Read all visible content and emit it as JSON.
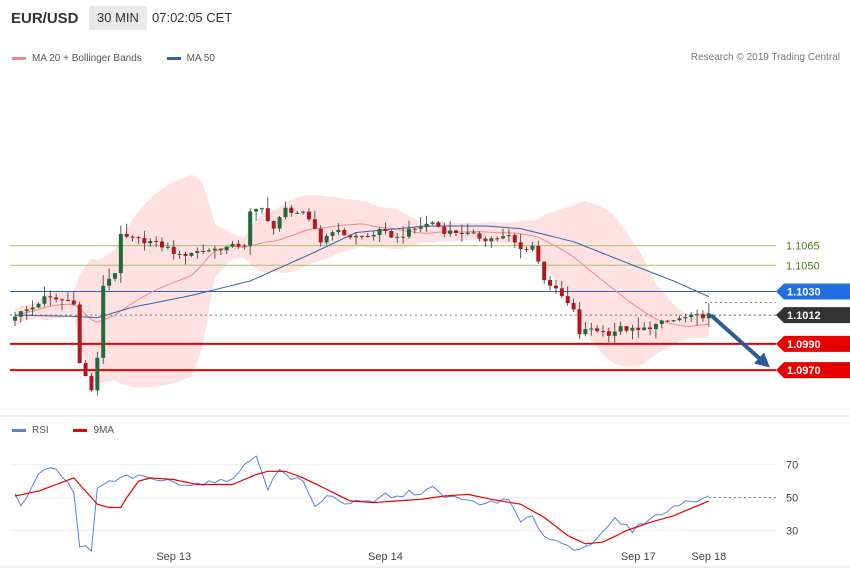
{
  "header": {
    "pair": "EUR/USD",
    "timeframe": "30 MIN",
    "time": "07:02:05 CET"
  },
  "legend": {
    "ma20_bb": "MA 20 + Bollinger Bands",
    "ma50": "MA 50",
    "rsi": "RSI",
    "ma9": "9MA"
  },
  "credit": "Research © 2019 Trading Central",
  "colors": {
    "up": "#1f6b3c",
    "down": "#b0171f",
    "band": "#ffe1e1",
    "ma20": "#f08a8a",
    "ma50": "#2e64a8",
    "resistance": "#2a62c9",
    "support": "#e60000",
    "target_green": "#9ec56a",
    "last_price": "#333333",
    "arrow": "#2d5c95",
    "rsi_line": "#5b82d6",
    "ma9_line": "#e60000"
  },
  "chart_data": [
    {
      "type": "candlestick",
      "ylim": [
        1.0938,
        1.118
      ],
      "levels": [
        {
          "label": "1.1065",
          "value": 1.1065,
          "kind": "target"
        },
        {
          "label": "1.1050",
          "value": 1.105,
          "kind": "target"
        },
        {
          "label": "1.1030",
          "value": 1.103,
          "kind": "resistance"
        },
        {
          "label": "1.1012",
          "value": 1.1012,
          "kind": "last"
        },
        {
          "label": "1.0990",
          "value": 1.099,
          "kind": "support"
        },
        {
          "label": "1.0970",
          "value": 1.097,
          "kind": "support"
        }
      ],
      "x_ticks": [
        {
          "label": "Sep 13",
          "index": 27
        },
        {
          "label": "Sep 14",
          "index": 63
        },
        {
          "label": "Sep 17",
          "index": 106
        },
        {
          "label": "Sep 18",
          "index": 118
        }
      ],
      "anchors": [
        [
          0,
          1.1012
        ],
        [
          3,
          1.1018
        ],
        [
          5,
          1.1025
        ],
        [
          9,
          1.1023
        ],
        [
          10,
          1.1022
        ],
        [
          11,
          1.0975
        ],
        [
          13,
          1.0955
        ],
        [
          14,
          1.0978
        ],
        [
          15,
          1.1035
        ],
        [
          17,
          1.1045
        ],
        [
          18,
          1.1072
        ],
        [
          20,
          1.107
        ],
        [
          23,
          1.1068
        ],
        [
          26,
          1.1063
        ],
        [
          28,
          1.1057
        ],
        [
          30,
          1.106
        ],
        [
          35,
          1.1063
        ],
        [
          39,
          1.1066
        ],
        [
          40,
          1.109
        ],
        [
          42,
          1.1093
        ],
        [
          44,
          1.1078
        ],
        [
          46,
          1.1093
        ],
        [
          49,
          1.1089
        ],
        [
          51,
          1.1078
        ],
        [
          52,
          1.1068
        ],
        [
          54,
          1.1077
        ],
        [
          57,
          1.1072
        ],
        [
          60,
          1.1072
        ],
        [
          62,
          1.1076
        ],
        [
          65,
          1.1071
        ],
        [
          67,
          1.1076
        ],
        [
          71,
          1.1083
        ],
        [
          73,
          1.1076
        ],
        [
          76,
          1.1075
        ],
        [
          80,
          1.107
        ],
        [
          84,
          1.1072
        ],
        [
          86,
          1.1062
        ],
        [
          88,
          1.1065
        ],
        [
          90,
          1.104
        ],
        [
          93,
          1.1026
        ],
        [
          95,
          1.1015
        ],
        [
          96,
          1.0998
        ],
        [
          98,
          1.1002
        ],
        [
          101,
          1.0998
        ],
        [
          103,
          1.1002
        ],
        [
          106,
          1.1
        ],
        [
          110,
          1.1006
        ],
        [
          114,
          1.101
        ],
        [
          118,
          1.1012
        ]
      ],
      "ma50_anchors": [
        [
          0,
          1.1012
        ],
        [
          10,
          1.1011
        ],
        [
          14,
          1.101
        ],
        [
          20,
          1.1018
        ],
        [
          30,
          1.1027
        ],
        [
          40,
          1.1038
        ],
        [
          50,
          1.1058
        ],
        [
          58,
          1.1075
        ],
        [
          70,
          1.108
        ],
        [
          80,
          1.108
        ],
        [
          86,
          1.1078
        ],
        [
          95,
          1.1068
        ],
        [
          104,
          1.1052
        ],
        [
          112,
          1.1038
        ],
        [
          118,
          1.1026
        ]
      ]
    },
    {
      "type": "line",
      "ylim": [
        17,
        85
      ],
      "y_ticks": [
        70,
        50,
        30
      ],
      "series": [
        {
          "name": "RSI",
          "anchors": [
            [
              0,
              53
            ],
            [
              1,
              44
            ],
            [
              3,
              58
            ],
            [
              5,
              68
            ],
            [
              7,
              67
            ],
            [
              9,
              58
            ],
            [
              10,
              52
            ],
            [
              11,
              20
            ],
            [
              12,
              20
            ],
            [
              13,
              18
            ],
            [
              14,
              55
            ],
            [
              15,
              58
            ],
            [
              17,
              60
            ],
            [
              19,
              63
            ],
            [
              22,
              62
            ],
            [
              26,
              60
            ],
            [
              30,
              58
            ],
            [
              36,
              60
            ],
            [
              40,
              72
            ],
            [
              41,
              76
            ],
            [
              43,
              56
            ],
            [
              45,
              67
            ],
            [
              47,
              62
            ],
            [
              49,
              60
            ],
            [
              51,
              44
            ],
            [
              53,
              52
            ],
            [
              56,
              47
            ],
            [
              58,
              47
            ],
            [
              61,
              47
            ],
            [
              63,
              52
            ],
            [
              65,
              50
            ],
            [
              67,
              53
            ],
            [
              69,
              53
            ],
            [
              71,
              56
            ],
            [
              73,
              50
            ],
            [
              76,
              50
            ],
            [
              79,
              45
            ],
            [
              81,
              48
            ],
            [
              84,
              48
            ],
            [
              86,
              35
            ],
            [
              88,
              38
            ],
            [
              90,
              27
            ],
            [
              92,
              24
            ],
            [
              95,
              19
            ],
            [
              97,
              21
            ],
            [
              99,
              24
            ],
            [
              102,
              37
            ],
            [
              105,
              30
            ],
            [
              108,
              38
            ],
            [
              110,
              40
            ],
            [
              112,
              44
            ],
            [
              114,
              48
            ],
            [
              116,
              49
            ],
            [
              118,
              50
            ]
          ]
        },
        {
          "name": "9MA",
          "anchors": [
            [
              0,
              51
            ],
            [
              4,
              54
            ],
            [
              7,
              58
            ],
            [
              10,
              62
            ],
            [
              12,
              54
            ],
            [
              14,
              46
            ],
            [
              16,
              44
            ],
            [
              18,
              44
            ],
            [
              19,
              50
            ],
            [
              21,
              60
            ],
            [
              23,
              62
            ],
            [
              27,
              61
            ],
            [
              31,
              58
            ],
            [
              37,
              58
            ],
            [
              41,
              64
            ],
            [
              43,
              66
            ],
            [
              46,
              66
            ],
            [
              49,
              62
            ],
            [
              53,
              55
            ],
            [
              57,
              48
            ],
            [
              61,
              47
            ],
            [
              65,
              48
            ],
            [
              69,
              49
            ],
            [
              73,
              51
            ],
            [
              77,
              52
            ],
            [
              81,
              49
            ],
            [
              86,
              46
            ],
            [
              90,
              38
            ],
            [
              94,
              27
            ],
            [
              97,
              22
            ],
            [
              100,
              23
            ],
            [
              104,
              30
            ],
            [
              108,
              35
            ],
            [
              112,
              39
            ],
            [
              116,
              45
            ],
            [
              118,
              48
            ]
          ]
        }
      ]
    }
  ]
}
